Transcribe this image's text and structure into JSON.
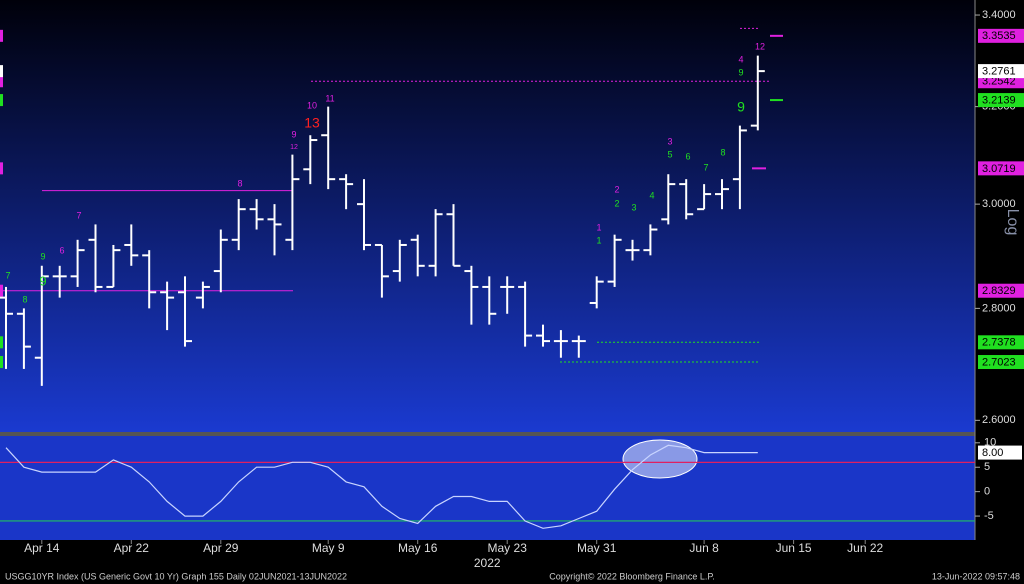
{
  "chart_data": {
    "type": "ohlc",
    "categories": [
      null,
      null,
      "Apr 14",
      null,
      null,
      null,
      null,
      "Apr 22",
      null,
      null,
      null,
      null,
      "Apr 29",
      null,
      null,
      null,
      null,
      null,
      "May 9",
      null,
      null,
      null,
      null,
      "May 16",
      null,
      null,
      null,
      null,
      "May 23",
      null,
      null,
      null,
      null,
      "May 31",
      null,
      null,
      null,
      null,
      null,
      "Jun 8",
      null,
      null,
      null,
      null,
      "Jun 15",
      null,
      null,
      null,
      "Jun 22",
      null,
      null,
      null,
      null,
      null
    ],
    "year_label": "2022",
    "open": [
      2.82,
      2.79,
      2.71,
      2.86,
      2.86,
      2.93,
      2.84,
      2.92,
      2.9,
      2.83,
      2.83,
      2.82,
      2.87,
      2.93,
      2.99,
      2.97,
      2.93,
      3.07,
      3.14,
      3.05,
      3.0,
      2.92,
      2.87,
      2.93,
      2.88,
      2.98,
      2.87,
      2.84,
      2.84,
      2.84,
      2.75,
      2.74,
      2.74,
      2.81,
      2.85,
      2.91,
      2.91,
      2.97,
      3.04,
      2.99,
      3.02,
      3.05,
      3.16,
      null,
      null,
      null,
      null,
      null,
      null,
      null,
      null,
      null,
      null,
      null
    ],
    "high": [
      2.84,
      2.8,
      2.88,
      2.88,
      2.93,
      2.96,
      2.92,
      2.96,
      2.91,
      2.85,
      2.86,
      2.85,
      2.95,
      3.01,
      3.01,
      3.0,
      3.1,
      3.14,
      3.2,
      3.06,
      3.05,
      2.92,
      2.93,
      2.94,
      2.99,
      3.0,
      2.88,
      2.86,
      2.86,
      2.85,
      2.77,
      2.76,
      2.75,
      2.86,
      2.94,
      2.93,
      2.96,
      3.06,
      3.05,
      3.04,
      3.05,
      3.16,
      3.31,
      null,
      null,
      null,
      null,
      null,
      null,
      null,
      null,
      null,
      null,
      null
    ],
    "low": [
      2.69,
      2.69,
      2.66,
      2.82,
      2.84,
      2.83,
      2.84,
      2.88,
      2.8,
      2.76,
      2.73,
      2.8,
      2.83,
      2.91,
      2.95,
      2.9,
      2.91,
      3.04,
      3.03,
      2.99,
      2.91,
      2.82,
      2.85,
      2.86,
      2.86,
      2.88,
      2.77,
      2.77,
      2.79,
      2.73,
      2.73,
      2.71,
      2.71,
      2.8,
      2.84,
      2.89,
      2.9,
      2.96,
      2.97,
      2.99,
      2.99,
      2.99,
      3.15,
      null,
      null,
      null,
      null,
      null,
      null,
      null,
      null,
      null,
      null,
      null
    ],
    "close": [
      2.79,
      2.73,
      2.86,
      2.86,
      2.91,
      2.84,
      2.91,
      2.9,
      2.83,
      2.82,
      2.74,
      2.84,
      2.93,
      2.99,
      2.97,
      2.96,
      3.05,
      3.13,
      3.05,
      3.04,
      2.92,
      2.86,
      2.92,
      2.88,
      2.98,
      2.88,
      2.84,
      2.79,
      2.84,
      2.75,
      2.74,
      2.74,
      2.74,
      2.85,
      2.93,
      2.91,
      2.95,
      3.04,
      2.98,
      3.02,
      3.03,
      3.15,
      3.2761,
      null,
      null,
      null,
      null,
      null,
      null,
      null,
      null,
      null,
      null,
      null
    ],
    "color": "#ffffff",
    "ylim": [
      2.58,
      3.434
    ],
    "yticks": [
      {
        "value": 2.6,
        "label": "2.6000"
      },
      {
        "value": 2.8,
        "label": "2.8000"
      },
      {
        "value": 3.0,
        "label": "3.0000"
      },
      {
        "value": 3.2,
        "label": "3.2000"
      },
      {
        "value": 3.4,
        "label": "3.4000"
      }
    ],
    "log_scale": true,
    "axis_label": "Log",
    "levels": [
      {
        "value": 3.3535,
        "color": "#e020e0",
        "style": "dash"
      },
      {
        "value": 3.2542,
        "color": "#e020e0",
        "style": "dotted"
      },
      {
        "value": 3.2139,
        "color": "#20e020",
        "style": "dash"
      },
      {
        "value": 3.0719,
        "color": "#e020e0",
        "style": "dash"
      },
      {
        "value": 2.8329,
        "color": "#e020e0",
        "style": "solid"
      },
      {
        "value": 2.7378,
        "color": "#20e020",
        "style": "dotted"
      },
      {
        "value": 2.7023,
        "color": "#20e020",
        "style": "dotted"
      }
    ],
    "lines": [
      {
        "value": 3.027,
        "color": "#e020e0",
        "style": "solid"
      },
      {
        "value": 3.37,
        "color": "#e020e0",
        "style": "dotted"
      }
    ],
    "annotations": [
      {
        "text": "10",
        "color": "#e020e0"
      },
      {
        "text": "11",
        "color": "#e020e0"
      },
      {
        "text": "13",
        "color": "#ff2020"
      },
      {
        "text": "9",
        "color": "#e020e0"
      },
      {
        "text": "12",
        "color": "#e020e0"
      },
      {
        "text": "8",
        "color": "#e020e0"
      },
      {
        "text": "7",
        "color": "#e020e0"
      },
      {
        "text": "6",
        "color": "#e020e0"
      },
      {
        "text": "9",
        "color": "#20e020"
      },
      {
        "text": "9",
        "color": "#20e020"
      },
      {
        "text": "7",
        "color": "#20e020"
      },
      {
        "text": "8",
        "color": "#20e020"
      },
      {
        "text": "1",
        "color": "#e020e0"
      },
      {
        "text": "1",
        "color": "#20e020"
      },
      {
        "text": "2",
        "color": "#e020e0"
      },
      {
        "text": "2",
        "color": "#20e020"
      },
      {
        "text": "3",
        "color": "#20e020"
      },
      {
        "text": "4",
        "color": "#20e020"
      },
      {
        "text": "3",
        "color": "#e020e0"
      },
      {
        "text": "5",
        "color": "#20e020"
      },
      {
        "text": "6",
        "color": "#20e020"
      },
      {
        "text": "7",
        "color": "#20e020"
      },
      {
        "text": "8",
        "color": "#20e020"
      },
      {
        "text": "4",
        "color": "#e020e0"
      },
      {
        "text": "9",
        "color": "#20e020"
      },
      {
        "text": "9",
        "color": "#20e020"
      },
      {
        "text": "12",
        "color": "#e020e0"
      }
    ],
    "indicator": {
      "type": "line",
      "values": [
        9,
        5,
        4,
        4,
        4,
        4,
        6.5,
        5,
        2,
        -2,
        -5,
        -5,
        -2,
        2,
        5,
        5,
        6,
        6,
        5,
        2,
        1,
        -3,
        -5.5,
        -6.5,
        -3,
        -1,
        -1,
        -2,
        -2,
        -6,
        -7.5,
        -7,
        -5.5,
        -4,
        0.5,
        4.5,
        7.5,
        9.5,
        9,
        8,
        8,
        8,
        8,
        null,
        null,
        null,
        null,
        null,
        null,
        null,
        null,
        null,
        null,
        null
      ],
      "color": "#c8d4ff",
      "ylim": [
        -9.9,
        11.6
      ],
      "yticks": [
        -5,
        0,
        5,
        10
      ],
      "upper_band": 6,
      "upper_color": "#e02060",
      "lower_band": -6,
      "lower_color": "#20c060",
      "last_label": "8.00"
    },
    "footer": {
      "left": "USGG10YR Index (US Generic Govt 10 Yr) Graph 155  Daily 02JUN2021-13JUN2022",
      "center": "Copyright© 2022 Bloomberg Finance L.P.",
      "right": "13-Jun-2022 09:57:48"
    }
  }
}
